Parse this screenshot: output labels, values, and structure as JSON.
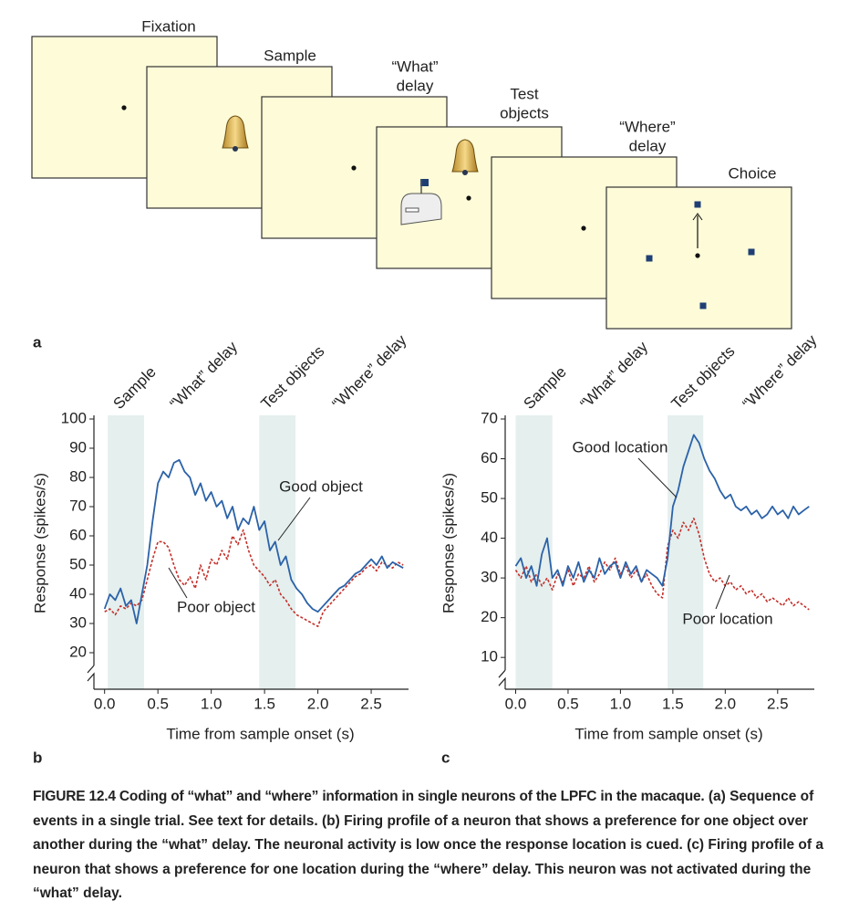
{
  "diagram": {
    "panel_label": "a",
    "screens": [
      {
        "label": [
          "Fixation"
        ]
      },
      {
        "label": [
          "Sample"
        ]
      },
      {
        "label": [
          "“What”",
          "delay"
        ]
      },
      {
        "label": [
          "Test",
          "objects"
        ]
      },
      {
        "label": [
          "“Where”",
          "delay"
        ]
      },
      {
        "label": [
          "Choice"
        ]
      }
    ]
  },
  "chart_data": [
    {
      "type": "line",
      "panel_label": "b",
      "xlabel": "Time from sample onset (s)",
      "ylabel": "Response (spikes/s)",
      "epoch_labels": [
        "Sample",
        "“What”  delay",
        "Test  objects",
        "“Where”  delay"
      ],
      "shaded_spans": [
        [
          0.03,
          0.37
        ],
        [
          1.45,
          1.79
        ]
      ],
      "xlim": [
        -0.1,
        2.85
      ],
      "xticks": [
        {
          "value": 0,
          "label": "0.0"
        },
        0.5,
        {
          "value": 1,
          "label": "1.0"
        },
        1.5,
        {
          "value": 2,
          "label": "2.0"
        },
        2.5
      ],
      "ylim": [
        7.5,
        100
      ],
      "yticks": [
        20,
        30,
        40,
        50,
        60,
        70,
        80,
        90,
        100
      ],
      "x": [
        0,
        0.05,
        0.1,
        0.15,
        0.2,
        0.25,
        0.3,
        0.35,
        0.4,
        0.45,
        0.5,
        0.55,
        0.6,
        0.65,
        0.7,
        0.75,
        0.8,
        0.85,
        0.9,
        0.95,
        1,
        1.05,
        1.1,
        1.15,
        1.2,
        1.25,
        1.3,
        1.35,
        1.4,
        1.45,
        1.5,
        1.55,
        1.6,
        1.65,
        1.7,
        1.75,
        1.8,
        1.85,
        1.9,
        1.95,
        2,
        2.05,
        2.1,
        2.15,
        2.2,
        2.25,
        2.3,
        2.35,
        2.4,
        2.45,
        2.5,
        2.55,
        2.6,
        2.65,
        2.7,
        2.75,
        2.8
      ],
      "series": [
        {
          "name": "Good object",
          "color": "#2b62a8",
          "dashed": false,
          "values": [
            35,
            40,
            38,
            42,
            36,
            38,
            30,
            40,
            50,
            65,
            78,
            82,
            80,
            85,
            86,
            82,
            80,
            74,
            78,
            72,
            75,
            70,
            72,
            66,
            70,
            62,
            66,
            64,
            70,
            62,
            65,
            55,
            58,
            50,
            53,
            45,
            42,
            40,
            37,
            35,
            34,
            36,
            38,
            40,
            42,
            43,
            45,
            47,
            48,
            50,
            52,
            50,
            53,
            49,
            51,
            50,
            49
          ]
        },
        {
          "name": "Poor object",
          "color": "#c4302b",
          "dashed": true,
          "values": [
            34,
            35,
            33,
            36,
            35,
            37,
            36,
            38,
            45,
            52,
            58,
            58,
            56,
            50,
            45,
            43,
            46,
            42,
            50,
            45,
            52,
            50,
            55,
            52,
            60,
            57,
            62,
            55,
            50,
            48,
            46,
            43,
            45,
            40,
            38,
            35,
            33,
            32,
            31,
            30,
            29,
            34,
            36,
            38,
            40,
            42,
            44,
            46,
            47,
            49,
            50,
            48,
            51,
            50,
            49,
            51,
            50
          ]
        }
      ]
    },
    {
      "type": "line",
      "panel_label": "c",
      "xlabel": "Time from sample onset (s)",
      "ylabel": "Response (spikes/s)",
      "epoch_labels": [
        "Sample",
        "“What”  delay",
        "Test  objects",
        "“Where”  delay"
      ],
      "shaded_spans": [
        [
          0.0,
          0.35
        ],
        [
          1.45,
          1.79
        ]
      ],
      "xlim": [
        -0.1,
        2.85
      ],
      "xticks": [
        {
          "value": 0,
          "label": "0.0"
        },
        0.5,
        {
          "value": 1,
          "label": "1.0"
        },
        1.5,
        {
          "value": 2,
          "label": "2.0"
        },
        2.5
      ],
      "ylim": [
        2,
        70
      ],
      "yticks": [
        10,
        20,
        30,
        40,
        50,
        60,
        70
      ],
      "x": [
        0,
        0.05,
        0.1,
        0.15,
        0.2,
        0.25,
        0.3,
        0.35,
        0.4,
        0.45,
        0.5,
        0.55,
        0.6,
        0.65,
        0.7,
        0.75,
        0.8,
        0.85,
        0.9,
        0.95,
        1,
        1.05,
        1.1,
        1.15,
        1.2,
        1.25,
        1.3,
        1.35,
        1.4,
        1.45,
        1.5,
        1.55,
        1.6,
        1.65,
        1.7,
        1.75,
        1.8,
        1.85,
        1.9,
        1.95,
        2,
        2.05,
        2.1,
        2.15,
        2.2,
        2.25,
        2.3,
        2.35,
        2.4,
        2.45,
        2.5,
        2.55,
        2.6,
        2.65,
        2.7,
        2.75,
        2.8
      ],
      "series": [
        {
          "name": "Good location",
          "color": "#2b62a8",
          "dashed": false,
          "values": [
            33,
            35,
            30,
            33,
            28,
            36,
            40,
            30,
            32,
            28,
            33,
            30,
            34,
            29,
            32,
            30,
            35,
            31,
            33,
            34,
            30,
            34,
            31,
            33,
            29,
            32,
            31,
            30,
            28,
            35,
            48,
            52,
            58,
            62,
            66,
            64,
            60,
            57,
            55,
            52,
            50,
            51,
            48,
            47,
            48,
            46,
            47,
            45,
            46,
            48,
            46,
            47,
            45,
            48,
            46,
            47,
            48
          ]
        },
        {
          "name": "Poor location",
          "color": "#c4302b",
          "dashed": true,
          "values": [
            32,
            30,
            33,
            29,
            31,
            28,
            30,
            27,
            31,
            29,
            32,
            28,
            31,
            30,
            33,
            29,
            31,
            34,
            32,
            35,
            31,
            33,
            30,
            32,
            29,
            31,
            28,
            26,
            25,
            38,
            42,
            40,
            44,
            42,
            45,
            41,
            35,
            31,
            29,
            30,
            28,
            29,
            27,
            28,
            26,
            27,
            25,
            26,
            24,
            25,
            24,
            23,
            25,
            23,
            24,
            23,
            22
          ]
        }
      ]
    }
  ],
  "caption": {
    "title": "FIGURE 12.4 Coding of “what” and “where” information in single neurons of the LPFC in the macaque.",
    "text": "(a) Sequence of events in a single trial. See text for details. (b) Firing profile of a neuron that shows a preference for one object over another during the “what” delay. The neuronal activity is low once the response location is cued. (c) Firing profile of a neuron that shows a preference for one location during the “where” delay. This neuron was not activated during the “what” delay."
  }
}
